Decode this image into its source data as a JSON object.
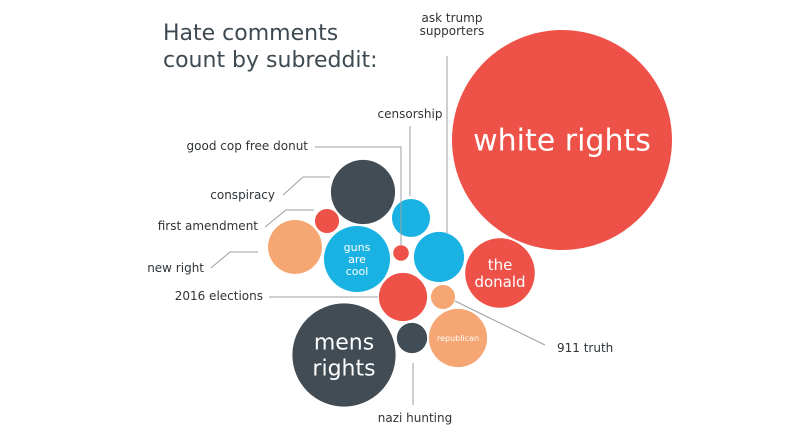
{
  "chart_data": {
    "type": "bubble",
    "title": [
      "Hate comments",
      "count by subreddit:"
    ],
    "size_note_units": "relative bubble area, largest = 100",
    "colors": {
      "red": "#ee5148",
      "dark": "#414c54",
      "blue": "#1ab2e2",
      "orange": "#f5a673"
    },
    "bubbles": [
      {
        "label": "white rights",
        "value": 100,
        "color": "red",
        "label_inside": [
          "white rights"
        ]
      },
      {
        "label": "mens rights",
        "value": 22,
        "color": "dark",
        "label_inside": [
          "mens",
          "rights"
        ]
      },
      {
        "label": "the donald",
        "value": 10,
        "color": "red",
        "label_inside": [
          "the",
          "donald"
        ]
      },
      {
        "label": "guns are cool",
        "value": 9,
        "color": "blue",
        "label_inside": [
          "guns",
          "are",
          "cool"
        ]
      },
      {
        "label": "conspiracy",
        "value": 8.5,
        "color": "dark",
        "callout": [
          "conspiracy"
        ]
      },
      {
        "label": "republican",
        "value": 7,
        "color": "orange",
        "label_inside": [
          "republican"
        ]
      },
      {
        "label": "new right",
        "value": 6,
        "color": "orange",
        "callout": [
          "new right"
        ]
      },
      {
        "label": "ask trump supporters",
        "value": 5.2,
        "color": "blue",
        "callout": [
          "ask trump",
          "supporters"
        ]
      },
      {
        "label": "2016 elections",
        "value": 4.8,
        "color": "red",
        "callout": [
          "2016 elections"
        ]
      },
      {
        "label": "censorship",
        "value": 3,
        "color": "blue",
        "callout": [
          "censorship"
        ]
      },
      {
        "label": "nazi hunting",
        "value": 1.9,
        "color": "dark",
        "callout": [
          "nazi hunting"
        ]
      },
      {
        "label": "first amendment",
        "value": 1.2,
        "color": "red",
        "callout": [
          "first amendment"
        ]
      },
      {
        "label": "911 truth",
        "value": 1.2,
        "color": "orange",
        "callout": [
          "911 truth"
        ]
      },
      {
        "label": "good cop free donut",
        "value": 0.5,
        "color": "red",
        "callout": [
          "good cop free donut"
        ]
      }
    ]
  }
}
